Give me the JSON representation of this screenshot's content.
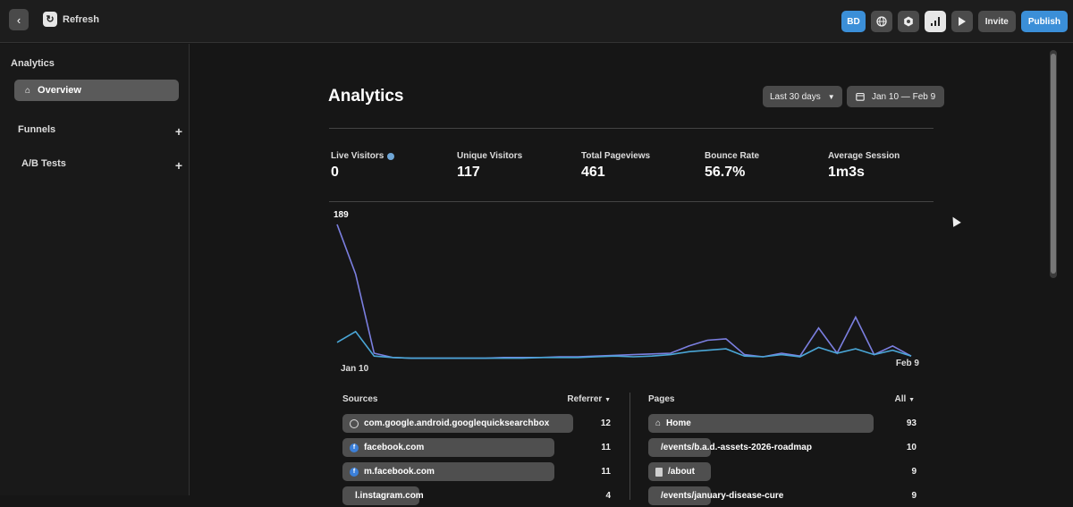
{
  "topbar": {
    "refresh_label": "Refresh",
    "avatar_initials": "BD",
    "invite_label": "Invite",
    "publish_label": "Publish",
    "icons": [
      "globe-icon",
      "settings-icon",
      "analytics-icon",
      "play-icon"
    ]
  },
  "sidebar": {
    "title": "Analytics",
    "overview_label": "Overview",
    "funnels_label": "Funnels",
    "ab_tests_label": "A/B Tests"
  },
  "main": {
    "title": "Analytics",
    "range_label": "Last 30 days",
    "date_range": "Jan 10 — Feb 9",
    "stats": [
      {
        "label": "Live Visitors",
        "value": "0"
      },
      {
        "label": "Unique Visitors",
        "value": "117"
      },
      {
        "label": "Total Pageviews",
        "value": "461"
      },
      {
        "label": "Bounce Rate",
        "value": "56.7%"
      },
      {
        "label": "Average Session",
        "value": "1m3s"
      }
    ]
  },
  "chart_data": {
    "type": "line",
    "x_start_label": "Jan 10",
    "x_end_label": "Feb 9",
    "max_label": "189",
    "ylim": [
      0,
      189
    ],
    "grid": false,
    "series": [
      {
        "color": "#7b7fe0",
        "values": [
          189,
          120,
          10,
          4,
          3,
          3,
          3,
          3,
          3,
          4,
          4,
          4,
          5,
          5,
          6,
          7,
          8,
          9,
          10,
          20,
          28,
          30,
          8,
          5,
          10,
          6,
          45,
          10,
          60,
          8,
          20,
          6
        ]
      },
      {
        "color": "#4aa6d6",
        "values": [
          25,
          40,
          6,
          4,
          3,
          3,
          3,
          3,
          3,
          3,
          3,
          4,
          4,
          4,
          5,
          6,
          5,
          6,
          8,
          12,
          14,
          16,
          6,
          5,
          8,
          5,
          18,
          10,
          16,
          8,
          14,
          6
        ]
      }
    ]
  },
  "sources": {
    "title": "Sources",
    "filter_label": "Referrer",
    "max": 12,
    "items": [
      {
        "icon": "globe-icon",
        "label": "com.google.android.googlequicksearchbox",
        "count": 12
      },
      {
        "icon": "facebook-icon",
        "label": "facebook.com",
        "count": 11
      },
      {
        "icon": "facebook-icon",
        "label": "m.facebook.com",
        "count": 11
      },
      {
        "icon": "instagram-icon",
        "label": "l.instagram.com",
        "count": 4
      }
    ]
  },
  "pages": {
    "title": "Pages",
    "filter_label": "All",
    "max": 93,
    "items": [
      {
        "icon": "home-icon",
        "label": "Home",
        "count": 93
      },
      {
        "icon": "document-icon",
        "label": "/events/b.a.d.-assets-2026-roadmap",
        "count": 10
      },
      {
        "icon": "document-icon",
        "label": "/about",
        "count": 9
      },
      {
        "icon": "document-icon",
        "label": "/events/january-disease-cure",
        "count": 9
      }
    ]
  }
}
